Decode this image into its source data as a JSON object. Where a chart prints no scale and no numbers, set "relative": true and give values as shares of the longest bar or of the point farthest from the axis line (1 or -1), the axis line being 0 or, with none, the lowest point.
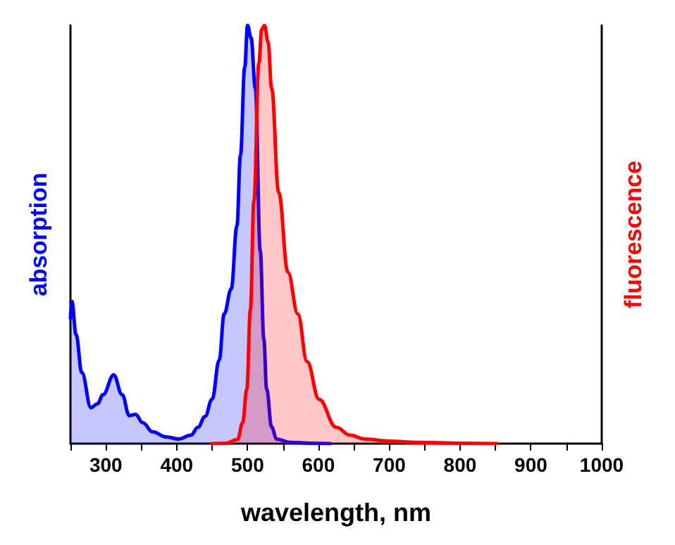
{
  "chart_data": {
    "type": "area",
    "xlabel": "wavelength, nm",
    "ylabel": "absorption",
    "y2label": "fluorescence",
    "relative": true,
    "grid": false,
    "marker": "none",
    "line_style": "solid",
    "xlim": [
      250,
      1000
    ],
    "xticks": [
      {
        "value": 250,
        "label": null
      },
      300,
      {
        "value": 350,
        "label": null
      },
      400,
      {
        "value": 450,
        "label": null
      },
      500,
      {
        "value": 550,
        "label": null
      },
      600,
      {
        "value": 650,
        "label": null
      },
      700,
      {
        "value": 750,
        "label": null
      },
      800,
      {
        "value": 850,
        "label": null
      },
      900,
      {
        "value": 950,
        "label": null
      },
      1000
    ],
    "series": [
      {
        "color": "#0000ff",
        "x": [
          250,
          252,
          258,
          266,
          279,
          288,
          296,
          311,
          323,
          333,
          342,
          352,
          366,
          385,
          403,
          420,
          430,
          440,
          450,
          460,
          467,
          477,
          485,
          490,
          496,
          500,
          505,
          511,
          518,
          523,
          527,
          534,
          541,
          560,
          590,
          617
        ],
        "values": [
          0.3,
          0.34,
          0.26,
          0.17,
          0.086,
          0.095,
          0.117,
          0.164,
          0.117,
          0.067,
          0.07,
          0.05,
          0.028,
          0.016,
          0.011,
          0.02,
          0.039,
          0.065,
          0.106,
          0.2,
          0.31,
          0.37,
          0.52,
          0.69,
          0.9,
          1.0,
          0.97,
          0.85,
          0.46,
          0.25,
          0.13,
          0.04,
          0.011,
          0.003,
          0.001,
          0
        ]
      },
      {
        "color": "#ff0000",
        "axis": "y2",
        "x": [
          450,
          470,
          486,
          493,
          499,
          504,
          509,
          516,
          520,
          524,
          529,
          534,
          544,
          557,
          571,
          584,
          601,
          625,
          645,
          665,
          700,
          738,
          800,
          852
        ],
        "values": [
          0,
          0.001,
          0.01,
          0.05,
          0.13,
          0.32,
          0.58,
          0.91,
          0.99,
          1.0,
          0.96,
          0.85,
          0.6,
          0.41,
          0.31,
          0.196,
          0.106,
          0.039,
          0.02,
          0.011,
          0.006,
          0.003,
          0.001,
          0
        ]
      }
    ]
  }
}
